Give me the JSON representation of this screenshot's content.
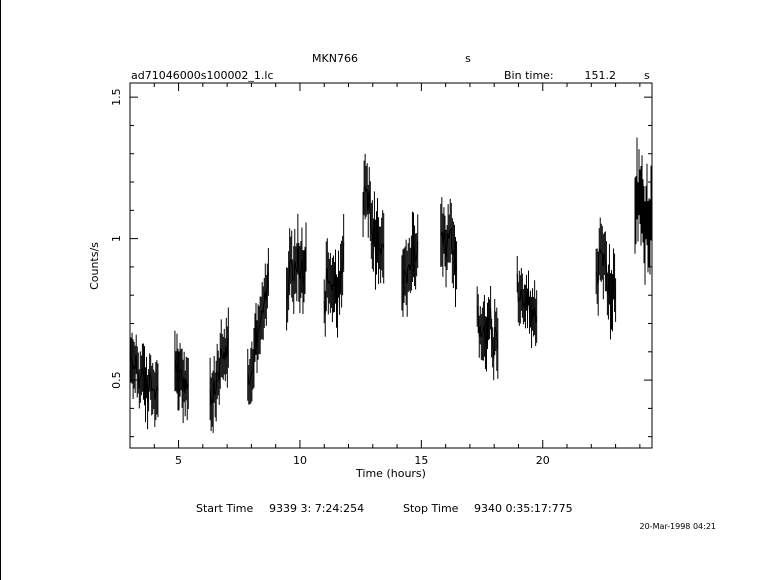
{
  "chart_data": {
    "type": "line",
    "title": "MKN766",
    "title_suffix": "s",
    "file_name": "ad71046000s100002_1.lc",
    "bin_time": {
      "label": "Bin time:",
      "value": "151.2",
      "unit": "s"
    },
    "xlabel": "Time (hours)",
    "ylabel": "Counts/s",
    "xlim": [
      3,
      24.5
    ],
    "ylim": [
      0.26,
      1.55
    ],
    "xticks": [
      5,
      10,
      15,
      20
    ],
    "yticks": [
      0.5,
      1,
      1.5
    ],
    "xtick_labels": [
      "5",
      "10",
      "15",
      "20"
    ],
    "ytick_labels": [
      "0.5",
      "1",
      "1.5"
    ],
    "grid": false,
    "style": "error-bar light curve, single series, black on white",
    "segments": [
      {
        "start": 3.0,
        "end": 4.15,
        "base": 0.56,
        "trend": -0.12,
        "amp": 0.06,
        "err": 0.085
      },
      {
        "start": 4.85,
        "end": 5.4,
        "base": 0.57,
        "trend": -0.12,
        "amp": 0.05,
        "err": 0.09
      },
      {
        "start": 6.3,
        "end": 7.05,
        "base": 0.42,
        "trend": 0.22,
        "amp": 0.05,
        "err": 0.09
      },
      {
        "start": 7.85,
        "end": 8.7,
        "base": 0.49,
        "trend": 0.36,
        "amp": 0.05,
        "err": 0.085
      },
      {
        "start": 9.45,
        "end": 10.25,
        "base": 0.87,
        "trend": 0.06,
        "amp": 0.07,
        "err": 0.1
      },
      {
        "start": 11.0,
        "end": 11.8,
        "base": 0.83,
        "trend": 0.05,
        "amp": 0.08,
        "err": 0.1
      },
      {
        "start": 12.6,
        "end": 13.45,
        "base": 1.16,
        "trend": -0.22,
        "amp": 0.07,
        "err": 0.1
      },
      {
        "start": 14.2,
        "end": 14.85,
        "base": 0.87,
        "trend": 0.08,
        "amp": 0.06,
        "err": 0.1
      },
      {
        "start": 15.8,
        "end": 16.45,
        "base": 1.02,
        "trend": -0.08,
        "amp": 0.06,
        "err": 0.1
      },
      {
        "start": 17.3,
        "end": 18.15,
        "base": 0.72,
        "trend": -0.08,
        "amp": 0.07,
        "err": 0.09
      },
      {
        "start": 18.95,
        "end": 19.75,
        "base": 0.84,
        "trend": -0.12,
        "amp": 0.05,
        "err": 0.08
      },
      {
        "start": 22.2,
        "end": 23.0,
        "base": 0.93,
        "trend": -0.12,
        "amp": 0.07,
        "err": 0.1
      },
      {
        "start": 23.8,
        "end": 24.5,
        "base": 1.13,
        "trend": -0.1,
        "amp": 0.08,
        "err": 0.12
      }
    ]
  },
  "footer": {
    "start_time_label": "Start Time",
    "start_time_value": "9339  3: 7:24:254",
    "stop_time_label": "Stop Time",
    "stop_time_value": "9340  0:35:17:775",
    "timestamp": "20-Mar-1998 04:21"
  }
}
